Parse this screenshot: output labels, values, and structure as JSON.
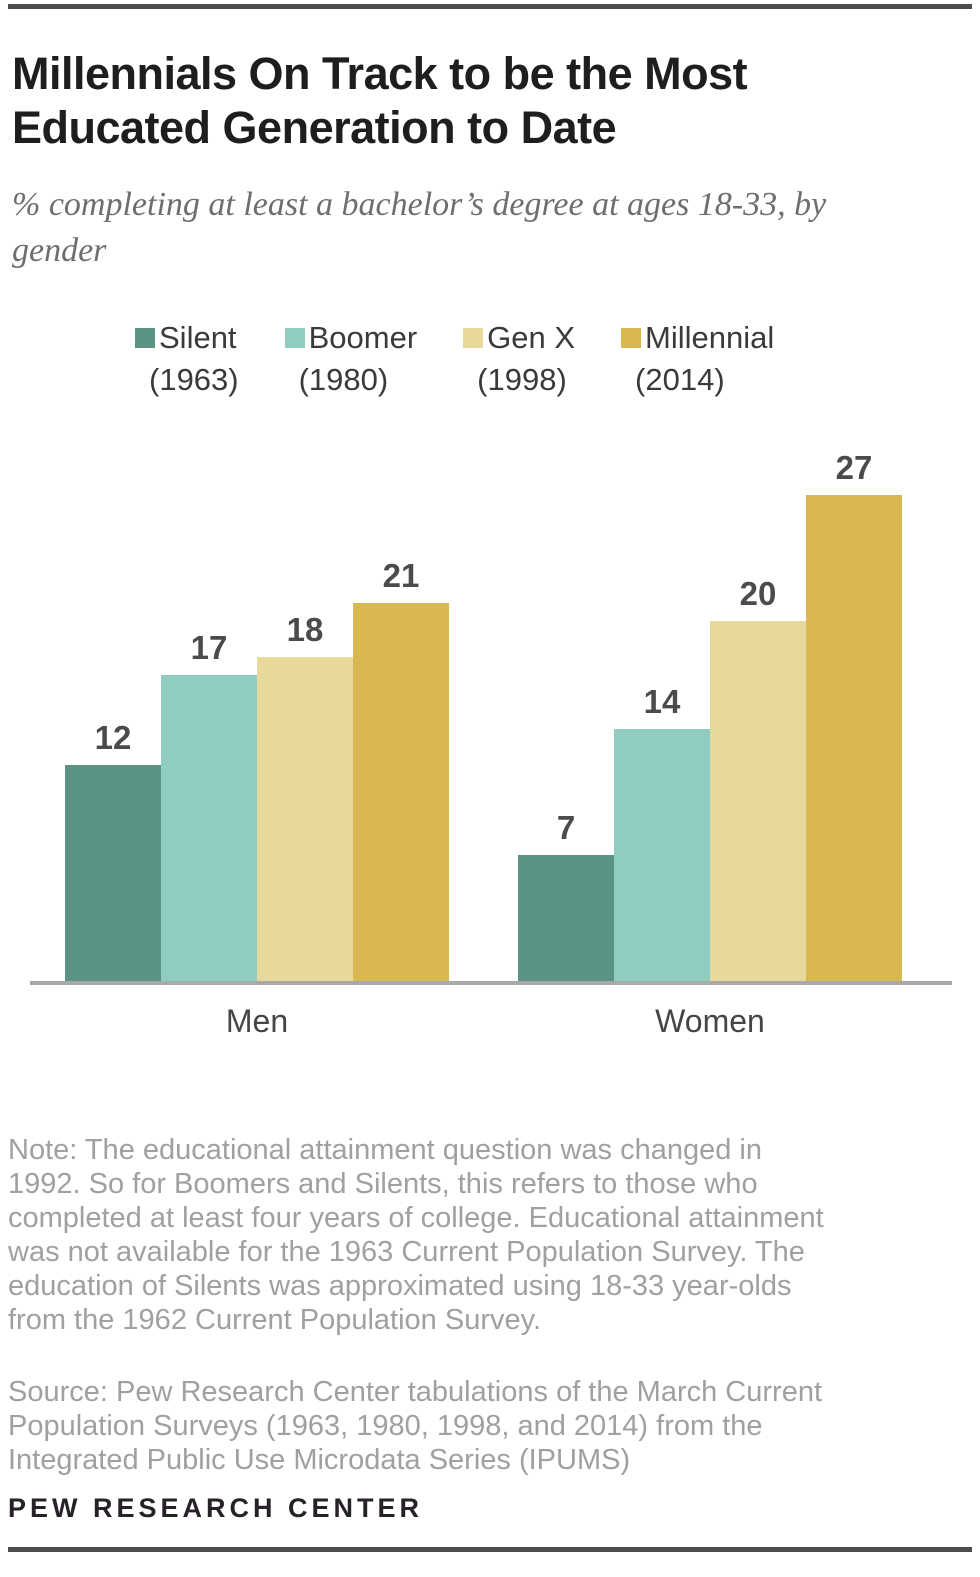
{
  "chart_data": {
    "type": "bar",
    "title": "Millennials On Track to be the Most Educated Generation to Date",
    "subtitle": "% completing at least a bachelor’s degree at ages 18-33, by gender",
    "categories": [
      "Men",
      "Women"
    ],
    "series": [
      {
        "name": "Silent",
        "year": "(1963)",
        "color": "#5A9384",
        "values": [
          12,
          7
        ]
      },
      {
        "name": "Boomer",
        "year": "(1980)",
        "color": "#90CCC0",
        "values": [
          17,
          14
        ]
      },
      {
        "name": "Gen X",
        "year": "(1998)",
        "color": "#E7D89C",
        "values": [
          18,
          20
        ]
      },
      {
        "name": "Millennial",
        "year": "(2014)",
        "color": "#D9B852",
        "values": [
          21,
          27
        ]
      }
    ],
    "ylim": [
      0,
      30
    ],
    "grid": false,
    "value_labels": true,
    "legend_position": "top",
    "axis_line_color": "#A9A9A9"
  },
  "footer": {
    "note_lines": [
      "Note: The educational attainment question was changed in",
      "1992. So for Boomers and Silents, this refers to those who",
      "completed at least four years of college. Educational attainment",
      "was not available for the 1963 Current Population Survey. The",
      "education of Silents was approximated using 18-33 year-olds",
      "from the 1962 Current Population Survey."
    ],
    "source_lines": [
      "Source: Pew Research Center tabulations of the March Current",
      "Population Surveys (1963, 1980, 1998, and 2014) from the",
      "Integrated Public Use Microdata Series (IPUMS)"
    ],
    "brand": "PEW RESEARCH CENTER"
  }
}
